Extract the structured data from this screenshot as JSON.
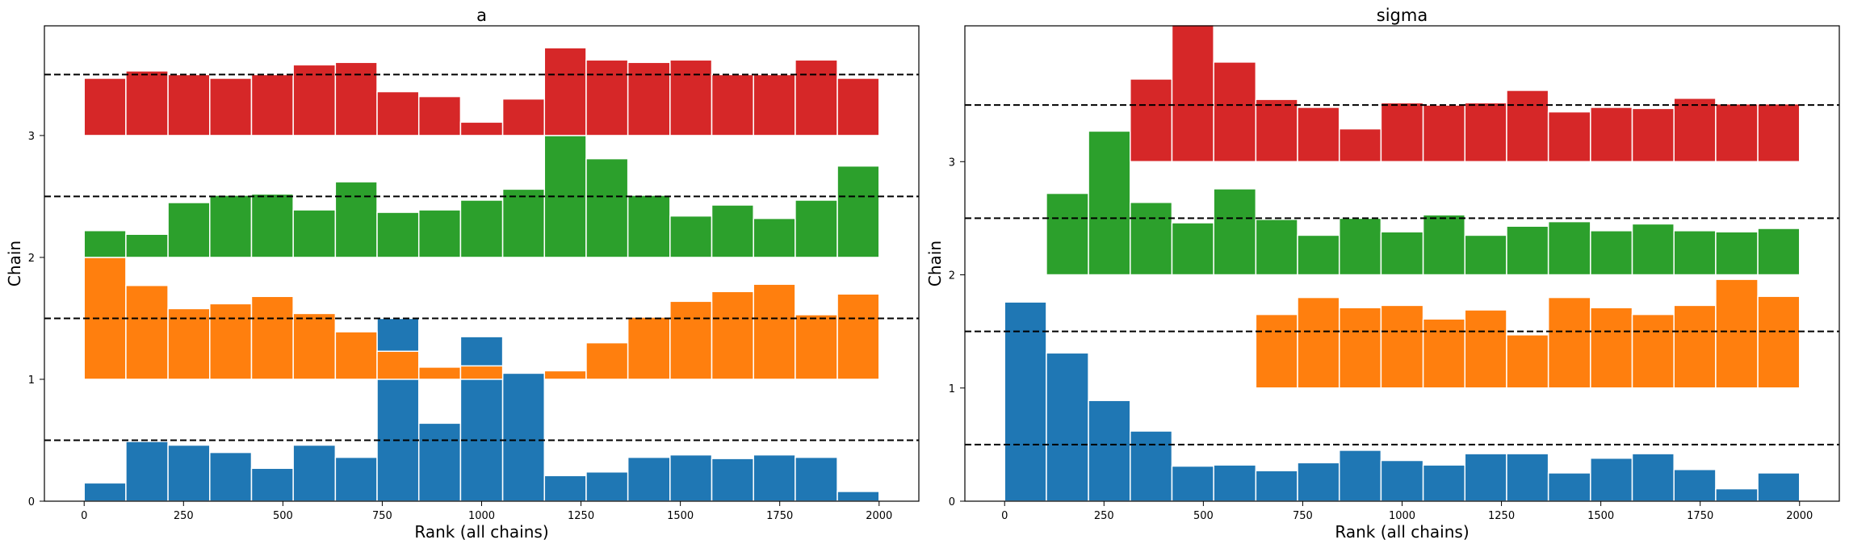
{
  "chart_data": [
    {
      "type": "bar",
      "title": "a",
      "xlabel": "Rank (all chains)",
      "ylabel": "Chain",
      "xlim": [
        -100,
        2100
      ],
      "ylim": [
        0,
        3.9
      ],
      "xticks": [
        0,
        250,
        500,
        750,
        1000,
        1250,
        1500,
        1750,
        2000
      ],
      "yticks": [
        0,
        1,
        2,
        3
      ],
      "reference_lines": [
        0.5,
        1.5,
        2.5,
        3.5
      ],
      "grid": false,
      "series": [
        {
          "chain": 0,
          "color": "#1f77b4",
          "bins": [
            [
              0,
              105,
              0.15
            ],
            [
              105,
              211,
              0.49
            ],
            [
              211,
              316,
              0.46
            ],
            [
              316,
              421,
              0.4
            ],
            [
              421,
              526,
              0.27
            ],
            [
              526,
              632,
              0.46
            ],
            [
              632,
              737,
              0.36
            ],
            [
              737,
              842,
              1.5
            ],
            [
              842,
              947,
              0.64
            ],
            [
              947,
              1053,
              1.35
            ],
            [
              1053,
              1158,
              1.05
            ],
            [
              1158,
              1263,
              0.21
            ],
            [
              1263,
              1368,
              0.24
            ],
            [
              1368,
              1474,
              0.36
            ],
            [
              1474,
              1579,
              0.38
            ],
            [
              1579,
              1684,
              0.35
            ],
            [
              1684,
              1789,
              0.38
            ],
            [
              1789,
              1895,
              0.36
            ],
            [
              1895,
              2000,
              0.08
            ]
          ]
        },
        {
          "chain": 1,
          "color": "#ff7f0e",
          "bins": [
            [
              0,
              105,
              1.0
            ],
            [
              105,
              211,
              0.77
            ],
            [
              211,
              316,
              0.58
            ],
            [
              316,
              421,
              0.62
            ],
            [
              421,
              526,
              0.68
            ],
            [
              526,
              632,
              0.54
            ],
            [
              632,
              737,
              0.39
            ],
            [
              737,
              842,
              0.23
            ],
            [
              842,
              947,
              0.1
            ],
            [
              947,
              1053,
              0.11
            ],
            [
              1053,
              1158,
              0.0
            ],
            [
              1158,
              1263,
              0.07
            ],
            [
              1263,
              1368,
              0.3
            ],
            [
              1368,
              1474,
              0.51
            ],
            [
              1474,
              1579,
              0.64
            ],
            [
              1579,
              1684,
              0.72
            ],
            [
              1684,
              1789,
              0.78
            ],
            [
              1789,
              1895,
              0.53
            ],
            [
              1895,
              2000,
              0.7
            ]
          ]
        },
        {
          "chain": 2,
          "color": "#2ca02c",
          "bins": [
            [
              0,
              105,
              0.22
            ],
            [
              105,
              211,
              0.19
            ],
            [
              211,
              316,
              0.45
            ],
            [
              316,
              421,
              0.51
            ],
            [
              421,
              526,
              0.52
            ],
            [
              526,
              632,
              0.39
            ],
            [
              632,
              737,
              0.62
            ],
            [
              737,
              842,
              0.37
            ],
            [
              842,
              947,
              0.39
            ],
            [
              947,
              1053,
              0.47
            ],
            [
              1053,
              1158,
              0.56
            ],
            [
              1158,
              1263,
              1.0
            ],
            [
              1263,
              1368,
              0.81
            ],
            [
              1368,
              1474,
              0.51
            ],
            [
              1474,
              1579,
              0.34
            ],
            [
              1579,
              1684,
              0.43
            ],
            [
              1684,
              1789,
              0.32
            ],
            [
              1789,
              1895,
              0.47
            ],
            [
              1895,
              2000,
              0.75
            ]
          ]
        },
        {
          "chain": 3,
          "color": "#d62728",
          "bins": [
            [
              0,
              105,
              0.47
            ],
            [
              105,
              211,
              0.53
            ],
            [
              211,
              316,
              0.5
            ],
            [
              316,
              421,
              0.47
            ],
            [
              421,
              526,
              0.5
            ],
            [
              526,
              632,
              0.58
            ],
            [
              632,
              737,
              0.6
            ],
            [
              737,
              842,
              0.36
            ],
            [
              842,
              947,
              0.32
            ],
            [
              947,
              1053,
              0.11
            ],
            [
              1053,
              1158,
              0.3
            ],
            [
              1158,
              1263,
              0.72
            ],
            [
              1263,
              1368,
              0.62
            ],
            [
              1368,
              1474,
              0.6
            ],
            [
              1474,
              1579,
              0.62
            ],
            [
              1579,
              1684,
              0.5
            ],
            [
              1684,
              1789,
              0.5
            ],
            [
              1789,
              1895,
              0.62
            ],
            [
              1895,
              2000,
              0.47
            ]
          ]
        }
      ]
    },
    {
      "type": "bar",
      "title": "sigma",
      "xlabel": "Rank (all chains)",
      "ylabel": "Chain",
      "xlim": [
        -100,
        2100
      ],
      "ylim": [
        0,
        4.2
      ],
      "xticks": [
        0,
        250,
        500,
        750,
        1000,
        1250,
        1500,
        1750,
        2000
      ],
      "yticks": [
        0,
        1,
        2,
        3
      ],
      "reference_lines": [
        0.5,
        1.5,
        2.5,
        3.5
      ],
      "grid": false,
      "series": [
        {
          "chain": 0,
          "color": "#1f77b4",
          "bins": [
            [
              0,
              105,
              1.76
            ],
            [
              105,
              211,
              1.31
            ],
            [
              211,
              316,
              0.89
            ],
            [
              316,
              421,
              0.62
            ],
            [
              421,
              526,
              0.31
            ],
            [
              526,
              632,
              0.32
            ],
            [
              632,
              737,
              0.27
            ],
            [
              737,
              842,
              0.34
            ],
            [
              842,
              947,
              0.45
            ],
            [
              947,
              1053,
              0.36
            ],
            [
              1053,
              1158,
              0.32
            ],
            [
              1158,
              1263,
              0.42
            ],
            [
              1263,
              1368,
              0.42
            ],
            [
              1368,
              1474,
              0.25
            ],
            [
              1474,
              1579,
              0.38
            ],
            [
              1579,
              1684,
              0.42
            ],
            [
              1684,
              1789,
              0.28
            ],
            [
              1789,
              1895,
              0.11
            ],
            [
              1895,
              2000,
              0.25
            ]
          ]
        },
        {
          "chain": 1,
          "color": "#ff7f0e",
          "bins": [
            [
              632,
              737,
              0.65
            ],
            [
              737,
              842,
              0.8
            ],
            [
              842,
              947,
              0.71
            ],
            [
              947,
              1053,
              0.73
            ],
            [
              1053,
              1158,
              0.61
            ],
            [
              1158,
              1263,
              0.69
            ],
            [
              1263,
              1368,
              0.47
            ],
            [
              1368,
              1474,
              0.8
            ],
            [
              1474,
              1579,
              0.71
            ],
            [
              1579,
              1684,
              0.65
            ],
            [
              1684,
              1789,
              0.73
            ],
            [
              1789,
              1895,
              0.96
            ],
            [
              1895,
              2000,
              0.81
            ]
          ]
        },
        {
          "chain": 2,
          "color": "#2ca02c",
          "bins": [
            [
              105,
              211,
              0.72
            ],
            [
              211,
              316,
              1.27
            ],
            [
              316,
              421,
              0.64
            ],
            [
              421,
              526,
              0.46
            ],
            [
              526,
              632,
              0.76
            ],
            [
              632,
              737,
              0.49
            ],
            [
              737,
              842,
              0.35
            ],
            [
              842,
              947,
              0.5
            ],
            [
              947,
              1053,
              0.38
            ],
            [
              1053,
              1158,
              0.53
            ],
            [
              1158,
              1263,
              0.35
            ],
            [
              1263,
              1368,
              0.43
            ],
            [
              1368,
              1474,
              0.47
            ],
            [
              1474,
              1579,
              0.39
            ],
            [
              1579,
              1684,
              0.45
            ],
            [
              1684,
              1789,
              0.39
            ],
            [
              1789,
              1895,
              0.38
            ],
            [
              1895,
              2000,
              0.41
            ]
          ]
        },
        {
          "chain": 3,
          "color": "#d62728",
          "bins": [
            [
              316,
              421,
              0.73
            ],
            [
              421,
              526,
              1.21
            ],
            [
              526,
              632,
              0.88
            ],
            [
              632,
              737,
              0.55
            ],
            [
              737,
              842,
              0.48
            ],
            [
              842,
              947,
              0.29
            ],
            [
              947,
              1053,
              0.52
            ],
            [
              1053,
              1158,
              0.5
            ],
            [
              1158,
              1263,
              0.52
            ],
            [
              1263,
              1368,
              0.63
            ],
            [
              1368,
              1474,
              0.44
            ],
            [
              1474,
              1579,
              0.48
            ],
            [
              1579,
              1684,
              0.47
            ],
            [
              1684,
              1789,
              0.56
            ],
            [
              1789,
              1895,
              0.51
            ],
            [
              1895,
              2000,
              0.51
            ]
          ]
        }
      ]
    }
  ]
}
